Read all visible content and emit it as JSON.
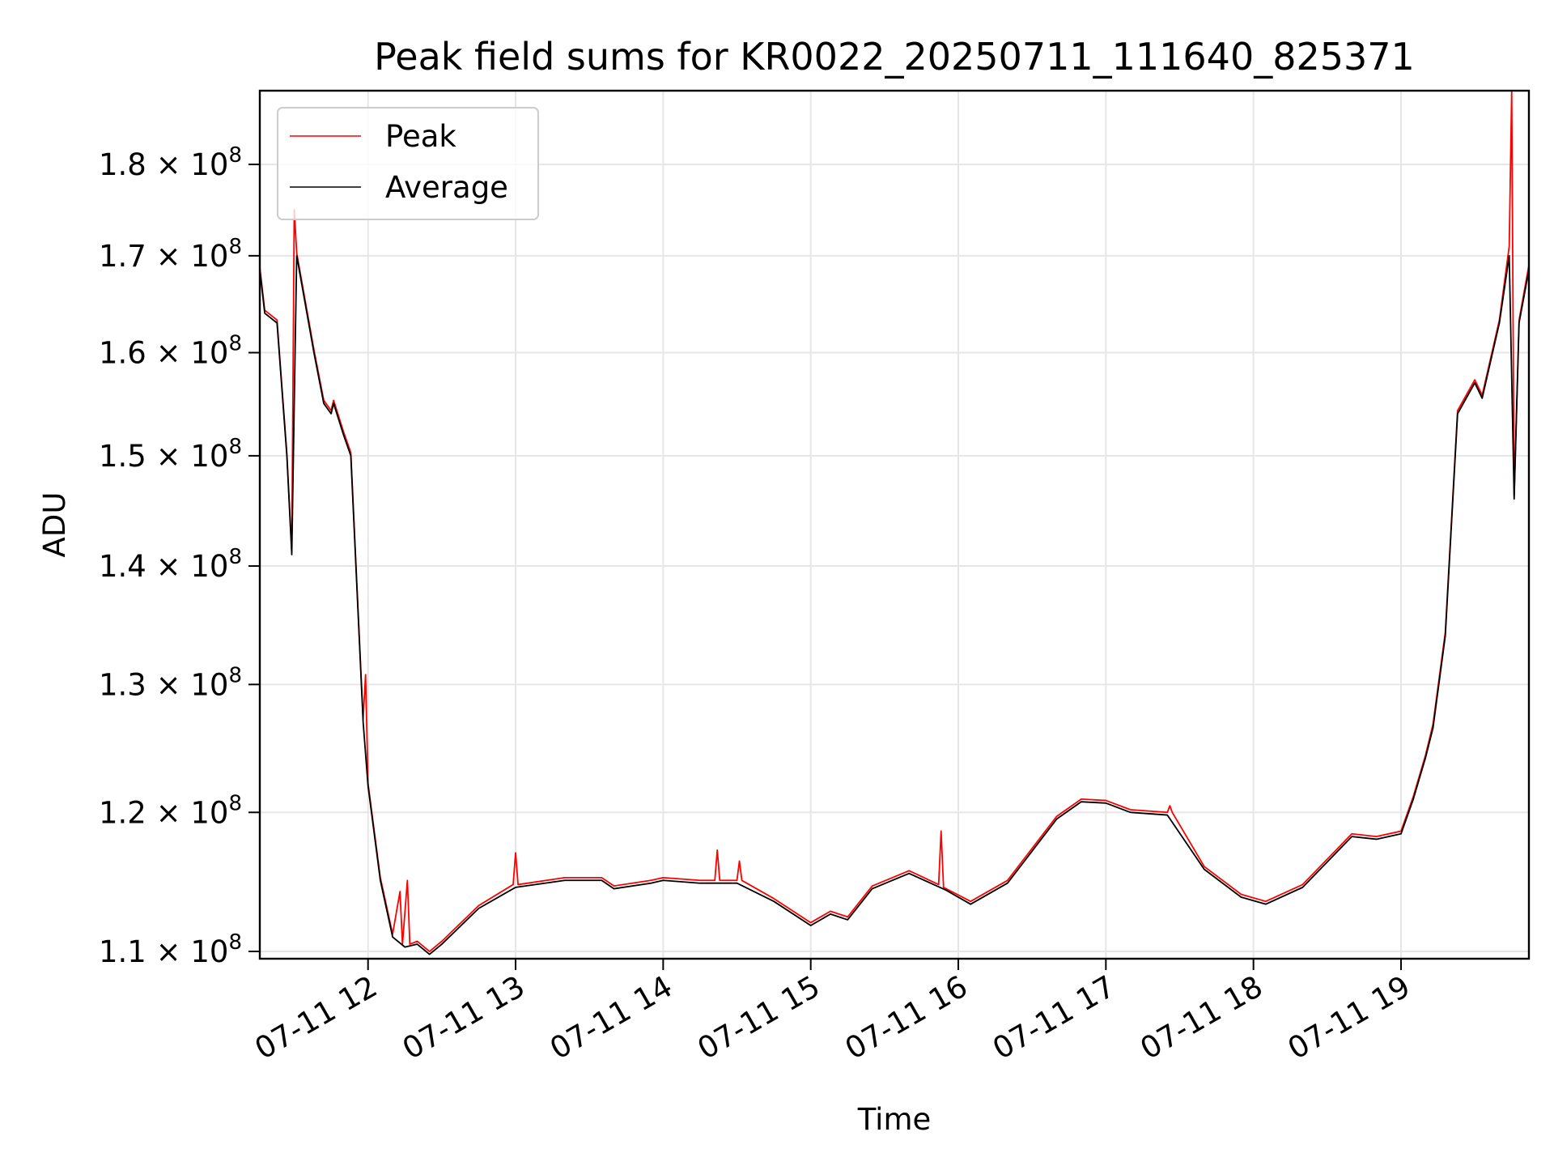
{
  "chart_data": {
    "type": "line",
    "title": "Peak field sums for KR0022_20250711_111640_825371",
    "xlabel": "Time",
    "ylabel": "ADU",
    "x_axis": {
      "type": "datetime",
      "range": [
        "2025-07-11 11:16",
        "2025-07-11 19:52"
      ],
      "ticks": [
        {
          "value": "2025-07-11 12:00",
          "label": "07-11 12"
        },
        {
          "value": "2025-07-11 13:00",
          "label": "07-11 13"
        },
        {
          "value": "2025-07-11 14:00",
          "label": "07-11 14"
        },
        {
          "value": "2025-07-11 15:00",
          "label": "07-11 15"
        },
        {
          "value": "2025-07-11 16:00",
          "label": "07-11 16"
        },
        {
          "value": "2025-07-11 17:00",
          "label": "07-11 17"
        },
        {
          "value": "2025-07-11 18:00",
          "label": "07-11 18"
        },
        {
          "value": "2025-07-11 19:00",
          "label": "07-11 19"
        }
      ]
    },
    "y_axis": {
      "scale": "log",
      "range": [
        109500000,
        188500000
      ],
      "ticks": [
        {
          "value": 110000000,
          "mantissa": "1.1"
        },
        {
          "value": 120000000,
          "mantissa": "1.2"
        },
        {
          "value": 130000000,
          "mantissa": "1.3"
        },
        {
          "value": 140000000,
          "mantissa": "1.4"
        },
        {
          "value": 150000000,
          "mantissa": "1.5"
        },
        {
          "value": 160000000,
          "mantissa": "1.6"
        },
        {
          "value": 170000000,
          "mantissa": "1.7"
        },
        {
          "value": 180000000,
          "mantissa": "1.8"
        }
      ],
      "tick_base": "10",
      "tick_exponent": "8"
    },
    "grid": true,
    "legend": {
      "position": "top-left"
    },
    "series": [
      {
        "name": "Average",
        "color": "#000000",
        "points": [
          [
            "2025-07-11 11:16",
            168500000
          ],
          [
            "2025-07-11 11:18",
            164000000
          ],
          [
            "2025-07-11 11:23",
            163000000
          ],
          [
            "2025-07-11 11:27",
            150000000
          ],
          [
            "2025-07-11 11:29",
            141000000
          ],
          [
            "2025-07-11 11:31",
            170000000
          ],
          [
            "2025-07-11 11:38",
            160000000
          ],
          [
            "2025-07-11 11:42",
            155000000
          ],
          [
            "2025-07-11 11:45",
            154000000
          ],
          [
            "2025-07-11 11:46",
            155000000
          ],
          [
            "2025-07-11 11:50",
            152000000
          ],
          [
            "2025-07-11 11:53",
            150000000
          ],
          [
            "2025-07-11 11:58",
            127000000
          ],
          [
            "2025-07-11 12:00",
            122000000
          ],
          [
            "2025-07-11 12:05",
            115000000
          ],
          [
            "2025-07-11 12:10",
            111000000
          ],
          [
            "2025-07-11 12:15",
            110300000
          ],
          [
            "2025-07-11 12:20",
            110500000
          ],
          [
            "2025-07-11 12:25",
            109800000
          ],
          [
            "2025-07-11 12:30",
            110500000
          ],
          [
            "2025-07-11 12:45",
            113000000
          ],
          [
            "2025-07-11 13:00",
            114500000
          ],
          [
            "2025-07-11 13:20",
            115000000
          ],
          [
            "2025-07-11 13:35",
            115000000
          ],
          [
            "2025-07-11 13:40",
            114400000
          ],
          [
            "2025-07-11 13:55",
            114800000
          ],
          [
            "2025-07-11 14:00",
            115000000
          ],
          [
            "2025-07-11 14:15",
            114800000
          ],
          [
            "2025-07-11 14:30",
            114800000
          ],
          [
            "2025-07-11 14:45",
            113500000
          ],
          [
            "2025-07-11 15:00",
            111800000
          ],
          [
            "2025-07-11 15:08",
            112600000
          ],
          [
            "2025-07-11 15:15",
            112200000
          ],
          [
            "2025-07-11 15:25",
            114400000
          ],
          [
            "2025-07-11 15:40",
            115500000
          ],
          [
            "2025-07-11 15:55",
            114300000
          ],
          [
            "2025-07-11 16:05",
            113300000
          ],
          [
            "2025-07-11 16:20",
            114800000
          ],
          [
            "2025-07-11 16:40",
            119500000
          ],
          [
            "2025-07-11 16:50",
            120800000
          ],
          [
            "2025-07-11 17:00",
            120700000
          ],
          [
            "2025-07-11 17:10",
            120000000
          ],
          [
            "2025-07-11 17:25",
            119800000
          ],
          [
            "2025-07-11 17:40",
            115800000
          ],
          [
            "2025-07-11 17:55",
            113800000
          ],
          [
            "2025-07-11 18:05",
            113300000
          ],
          [
            "2025-07-11 18:20",
            114500000
          ],
          [
            "2025-07-11 18:40",
            118200000
          ],
          [
            "2025-07-11 18:50",
            118000000
          ],
          [
            "2025-07-11 19:00",
            118400000
          ],
          [
            "2025-07-11 19:05",
            121000000
          ],
          [
            "2025-07-11 19:10",
            124200000
          ],
          [
            "2025-07-11 19:13",
            126500000
          ],
          [
            "2025-07-11 19:18",
            134000000
          ],
          [
            "2025-07-11 19:23",
            154000000
          ],
          [
            "2025-07-11 19:30",
            157000000
          ],
          [
            "2025-07-11 19:33",
            155500000
          ],
          [
            "2025-07-11 19:40",
            163000000
          ],
          [
            "2025-07-11 19:44",
            170000000
          ],
          [
            "2025-07-11 19:46",
            146000000
          ],
          [
            "2025-07-11 19:48",
            163000000
          ],
          [
            "2025-07-11 19:52",
            168500000
          ]
        ]
      },
      {
        "name": "Peak",
        "color": "#ff0000",
        "points": [
          [
            "2025-07-11 11:16",
            168800000
          ],
          [
            "2025-07-11 11:18",
            164300000
          ],
          [
            "2025-07-11 11:23",
            163300000
          ],
          [
            "2025-07-11 11:27",
            150200000
          ],
          [
            "2025-07-11 11:29",
            141300000
          ],
          [
            "2025-07-11 11:30",
            175000000
          ],
          [
            "2025-07-11 11:31",
            170300000
          ],
          [
            "2025-07-11 11:38",
            160300000
          ],
          [
            "2025-07-11 11:42",
            155300000
          ],
          [
            "2025-07-11 11:45",
            154300000
          ],
          [
            "2025-07-11 11:46",
            155300000
          ],
          [
            "2025-07-11 11:50",
            152300000
          ],
          [
            "2025-07-11 11:53",
            150300000
          ],
          [
            "2025-07-11 11:58",
            127200000
          ],
          [
            "2025-07-11 11:59",
            130800000
          ],
          [
            "2025-07-11 12:00",
            122200000
          ],
          [
            "2025-07-11 12:05",
            115200000
          ],
          [
            "2025-07-11 12:10",
            111200000
          ],
          [
            "2025-07-11 12:13",
            114200000
          ],
          [
            "2025-07-11 12:14",
            110500000
          ],
          [
            "2025-07-11 12:16",
            115000000
          ],
          [
            "2025-07-11 12:17",
            110500000
          ],
          [
            "2025-07-11 12:20",
            110700000
          ],
          [
            "2025-07-11 12:25",
            110000000
          ],
          [
            "2025-07-11 12:30",
            110700000
          ],
          [
            "2025-07-11 12:45",
            113200000
          ],
          [
            "2025-07-11 12:59",
            114700000
          ],
          [
            "2025-07-11 13:00",
            117000000
          ],
          [
            "2025-07-11 13:01",
            114700000
          ],
          [
            "2025-07-11 13:20",
            115200000
          ],
          [
            "2025-07-11 13:35",
            115200000
          ],
          [
            "2025-07-11 13:40",
            114600000
          ],
          [
            "2025-07-11 13:55",
            115000000
          ],
          [
            "2025-07-11 14:00",
            115200000
          ],
          [
            "2025-07-11 14:15",
            115000000
          ],
          [
            "2025-07-11 14:21",
            115000000
          ],
          [
            "2025-07-11 14:22",
            117200000
          ],
          [
            "2025-07-11 14:23",
            115000000
          ],
          [
            "2025-07-11 14:30",
            115000000
          ],
          [
            "2025-07-11 14:31",
            116400000
          ],
          [
            "2025-07-11 14:32",
            115000000
          ],
          [
            "2025-07-11 14:45",
            113700000
          ],
          [
            "2025-07-11 15:00",
            112000000
          ],
          [
            "2025-07-11 15:08",
            112800000
          ],
          [
            "2025-07-11 15:15",
            112400000
          ],
          [
            "2025-07-11 15:25",
            114600000
          ],
          [
            "2025-07-11 15:40",
            115700000
          ],
          [
            "2025-07-11 15:52",
            114700000
          ],
          [
            "2025-07-11 15:53",
            118600000
          ],
          [
            "2025-07-11 15:54",
            114500000
          ],
          [
            "2025-07-11 16:05",
            113500000
          ],
          [
            "2025-07-11 16:20",
            115000000
          ],
          [
            "2025-07-11 16:40",
            119700000
          ],
          [
            "2025-07-11 16:50",
            121000000
          ],
          [
            "2025-07-11 17:00",
            120900000
          ],
          [
            "2025-07-11 17:10",
            120200000
          ],
          [
            "2025-07-11 17:25",
            120000000
          ],
          [
            "2025-07-11 17:26",
            120500000
          ],
          [
            "2025-07-11 17:27",
            120000000
          ],
          [
            "2025-07-11 17:40",
            116000000
          ],
          [
            "2025-07-11 17:55",
            114000000
          ],
          [
            "2025-07-11 18:05",
            113500000
          ],
          [
            "2025-07-11 18:20",
            114700000
          ],
          [
            "2025-07-11 18:40",
            118400000
          ],
          [
            "2025-07-11 18:50",
            118200000
          ],
          [
            "2025-07-11 19:00",
            118600000
          ],
          [
            "2025-07-11 19:05",
            121200000
          ],
          [
            "2025-07-11 19:10",
            124400000
          ],
          [
            "2025-07-11 19:13",
            126800000
          ],
          [
            "2025-07-11 19:18",
            134300000
          ],
          [
            "2025-07-11 19:23",
            154300000
          ],
          [
            "2025-07-11 19:30",
            157300000
          ],
          [
            "2025-07-11 19:33",
            155800000
          ],
          [
            "2025-07-11 19:40",
            163300000
          ],
          [
            "2025-07-11 19:44",
            171000000
          ],
          [
            "2025-07-11 19:45",
            188500000
          ],
          [
            "2025-07-11 19:46",
            146300000
          ],
          [
            "2025-07-11 19:48",
            163300000
          ],
          [
            "2025-07-11 19:52",
            169000000
          ]
        ]
      }
    ]
  }
}
